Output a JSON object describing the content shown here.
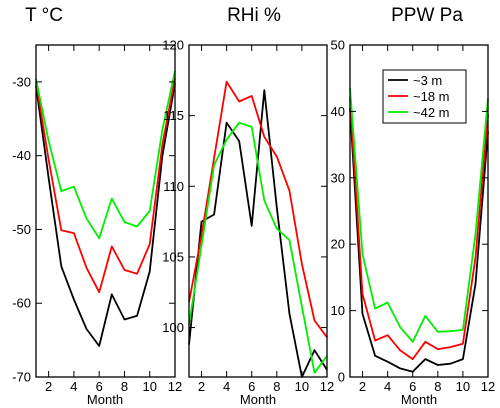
{
  "chart_data": [
    {
      "type": "line",
      "title": "T °C",
      "xlabel": "Month",
      "ylabel": "",
      "xlim": [
        1,
        12
      ],
      "ylim": [
        -70,
        -25
      ],
      "xticks": [
        2,
        4,
        6,
        8,
        10,
        12
      ],
      "yticks": [
        -70,
        -60,
        -50,
        -40,
        -30
      ],
      "x": [
        1,
        2,
        3,
        4,
        5,
        6,
        7,
        8,
        9,
        10,
        11,
        12
      ],
      "series": [
        {
          "key": "s3",
          "color": "#000000",
          "values": [
            -30.5,
            -43.0,
            -55.0,
            -59.5,
            -63.5,
            -65.8,
            -58.8,
            -62.2,
            -61.7,
            -55.7,
            -40.0,
            -30.2
          ]
        },
        {
          "key": "s18",
          "color": "#ff0000",
          "values": [
            -30.0,
            -40.5,
            -50.1,
            -50.5,
            -55.2,
            -58.5,
            -52.3,
            -55.5,
            -56.0,
            -52.0,
            -38.5,
            -29.5
          ]
        },
        {
          "key": "s42",
          "color": "#00ee00",
          "values": [
            -29.6,
            -38.0,
            -44.8,
            -44.2,
            -48.5,
            -51.2,
            -45.8,
            -49.0,
            -49.6,
            -47.5,
            -36.5,
            -28.5
          ]
        }
      ]
    },
    {
      "type": "line",
      "title": "RHi %",
      "xlabel": "Month",
      "ylabel": "",
      "xlim": [
        1,
        12
      ],
      "ylim": [
        96.5,
        120
      ],
      "xticks": [
        2,
        4,
        6,
        8,
        10,
        12
      ],
      "yticks": [
        100,
        105,
        110,
        115,
        120
      ],
      "x": [
        1,
        2,
        3,
        4,
        5,
        6,
        7,
        8,
        9,
        10,
        11,
        12
      ],
      "series": [
        {
          "key": "s3",
          "color": "#000000",
          "values": [
            98.8,
            107.5,
            108.0,
            114.5,
            113.2,
            107.2,
            116.8,
            108.5,
            101.0,
            96.5,
            98.4,
            97.0
          ]
        },
        {
          "key": "s18",
          "color": "#ff0000",
          "values": [
            101.8,
            106.5,
            112.0,
            117.4,
            116.0,
            116.4,
            113.5,
            112.1,
            109.7,
            104.5,
            100.5,
            99.3
          ]
        },
        {
          "key": "s42",
          "color": "#00ee00",
          "values": [
            100.2,
            105.8,
            111.5,
            113.3,
            114.5,
            114.2,
            109.0,
            107.0,
            106.2,
            101.5,
            96.8,
            98.0
          ]
        }
      ]
    },
    {
      "type": "line",
      "title": "PPW Pa",
      "xlabel": "Month",
      "ylabel": "",
      "xlim": [
        1,
        12
      ],
      "ylim": [
        0,
        50
      ],
      "xticks": [
        2,
        4,
        6,
        8,
        10,
        12
      ],
      "yticks": [
        0,
        10,
        20,
        30,
        40,
        50
      ],
      "x": [
        1,
        2,
        3,
        4,
        5,
        6,
        7,
        8,
        9,
        10,
        11,
        12
      ],
      "series": [
        {
          "key": "s3",
          "color": "#000000",
          "name": "~3 m",
          "values": [
            40.5,
            9.5,
            3.2,
            2.3,
            1.3,
            0.8,
            2.7,
            1.8,
            2.0,
            2.7,
            14.0,
            37.0
          ]
        },
        {
          "key": "s18",
          "color": "#ff0000",
          "name": "~18 m",
          "values": [
            42.0,
            12.5,
            5.5,
            6.3,
            4.0,
            2.7,
            5.3,
            4.2,
            4.5,
            5.0,
            18.0,
            39.5
          ]
        },
        {
          "key": "s42",
          "color": "#00ee00",
          "name": "~42 m",
          "values": [
            43.5,
            18.5,
            10.3,
            11.2,
            7.5,
            5.3,
            9.2,
            6.8,
            6.9,
            7.1,
            21.5,
            42.0
          ]
        }
      ],
      "legend_position": "top-right"
    }
  ]
}
